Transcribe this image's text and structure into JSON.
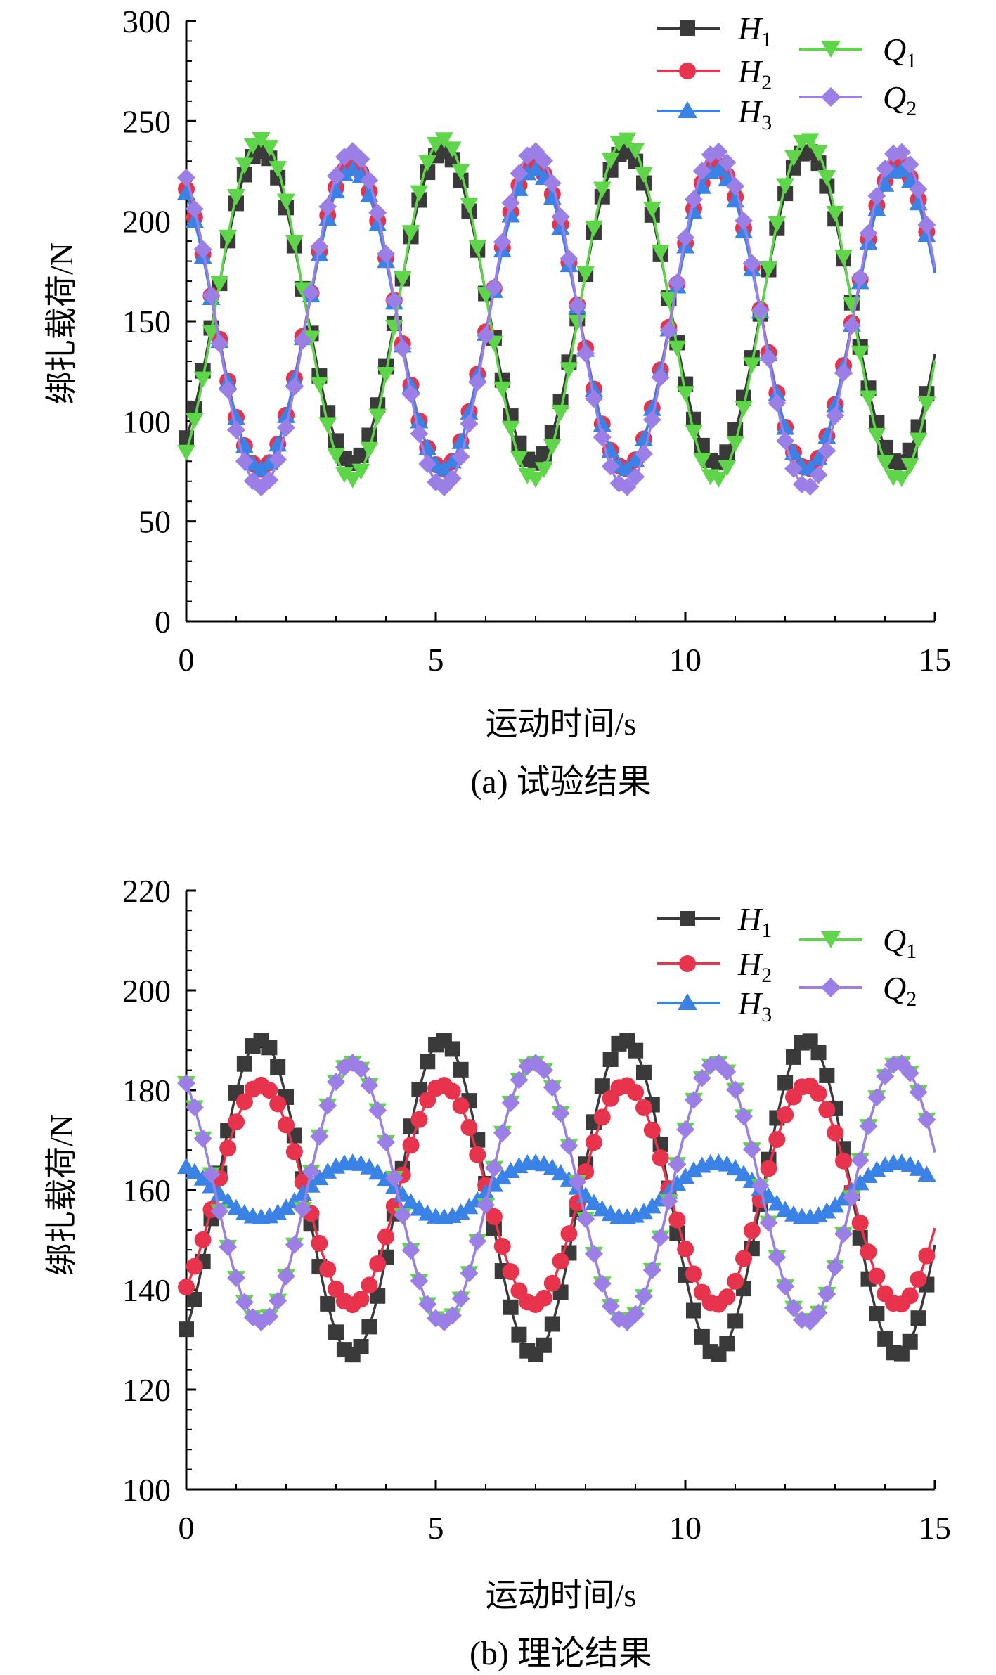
{
  "chart_data": [
    {
      "type": "line",
      "caption": "(a) 试验结果",
      "xlabel": "运动时间/s",
      "ylabel": "绑扎载荷/N",
      "xlim": [
        0,
        15
      ],
      "ylim": [
        0,
        300
      ],
      "xticks": [
        0,
        5,
        10,
        15
      ],
      "yticks": [
        0,
        50,
        100,
        150,
        200,
        250,
        300
      ],
      "xtick_labels": [
        "0",
        "5",
        "10",
        "15"
      ],
      "ytick_labels": [
        "0",
        "50",
        "100",
        "150",
        "200",
        "250",
        "300"
      ],
      "grid": false,
      "legend_position": "top-right",
      "x_start": 0,
      "x_end": 15,
      "x_step": 0.1667,
      "series": [
        {
          "name": "H",
          "subscript": "1",
          "color": "#3a3a3a",
          "marker": "square",
          "mean": 157,
          "amplitude": 78,
          "period": 3.65,
          "phase": 1.49
        },
        {
          "name": "H",
          "subscript": "2",
          "color": "#e8334d",
          "marker": "circle",
          "mean": 152,
          "amplitude": 76,
          "period": 3.65,
          "phase": 3.32
        },
        {
          "name": "H",
          "subscript": "3",
          "color": "#3b82e6",
          "marker": "triangle-up",
          "mean": 151,
          "amplitude": 75,
          "period": 3.65,
          "phase": 3.32
        },
        {
          "name": "Q",
          "subscript": "1",
          "color": "#5fd64a",
          "marker": "triangle-down",
          "mean": 156,
          "amplitude": 85,
          "period": 3.65,
          "phase": 1.49
        },
        {
          "name": "Q",
          "subscript": "2",
          "color": "#9b7fe6",
          "marker": "diamond",
          "mean": 151,
          "amplitude": 84,
          "period": 3.65,
          "phase": 3.32
        }
      ]
    },
    {
      "type": "line",
      "caption": "(b) 理论结果",
      "xlabel": "运动时间/s",
      "ylabel": "绑扎载荷/N",
      "xlim": [
        0,
        15
      ],
      "ylim": [
        100,
        220
      ],
      "xticks": [
        0,
        5,
        10,
        15
      ],
      "yticks": [
        100,
        120,
        140,
        160,
        180,
        200,
        220
      ],
      "xtick_labels": [
        "0",
        "5",
        "10",
        "15"
      ],
      "ytick_labels": [
        "100",
        "120",
        "140",
        "160",
        "180",
        "200",
        "220"
      ],
      "grid": false,
      "legend_position": "top-right",
      "x_start": 0,
      "x_end": 15,
      "x_step": 0.1667,
      "series": [
        {
          "name": "H",
          "subscript": "1",
          "color": "#3a3a3a",
          "marker": "square",
          "mean": 158.5,
          "amplitude": 31.5,
          "period": 3.65,
          "phase": 1.49
        },
        {
          "name": "H",
          "subscript": "2",
          "color": "#e8334d",
          "marker": "circle",
          "mean": 159,
          "amplitude": 22,
          "period": 3.65,
          "phase": 1.49
        },
        {
          "name": "H",
          "subscript": "3",
          "color": "#3b82e6",
          "marker": "triangle-up",
          "mean": 160,
          "amplitude": 5.5,
          "period": 3.65,
          "phase": 3.32
        },
        {
          "name": "Q",
          "subscript": "1",
          "color": "#5fd64a",
          "marker": "triangle-down",
          "mean": 159.5,
          "amplitude": 26,
          "period": 3.65,
          "phase": 3.32
        },
        {
          "name": "Q",
          "subscript": "2",
          "color": "#9b7fe6",
          "marker": "diamond",
          "mean": 159.5,
          "amplitude": 26,
          "period": 3.65,
          "phase": 3.32
        }
      ]
    }
  ]
}
